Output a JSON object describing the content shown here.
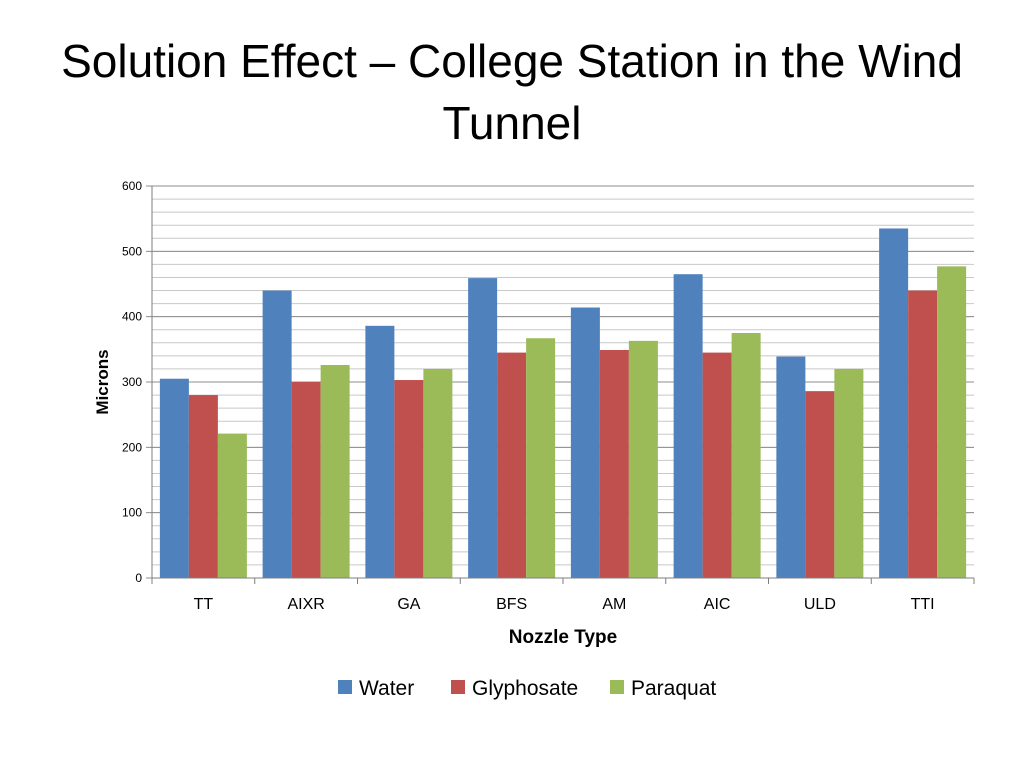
{
  "slide": {
    "title": "Solution Effect – College Station in the Wind Tunnel"
  },
  "chart_data": {
    "type": "bar",
    "title": "",
    "xlabel": "Nozzle Type",
    "ylabel": "Microns",
    "ylim": [
      0,
      600
    ],
    "yticks": [
      0,
      100,
      200,
      300,
      400,
      500,
      600
    ],
    "minor_gridline_step": 20,
    "grid": true,
    "legend_position": "bottom",
    "categories": [
      "TT",
      "AIXR",
      "GA",
      "BFS",
      "AM",
      "AIC",
      "ULD",
      "TTI"
    ],
    "series": [
      {
        "name": "Water",
        "color": "#4F81BD",
        "values": [
          305,
          440,
          386,
          459,
          414,
          465,
          339,
          535
        ]
      },
      {
        "name": "Glyphosate",
        "color": "#C0504D",
        "values": [
          280,
          300,
          303,
          345,
          349,
          345,
          286,
          440
        ]
      },
      {
        "name": "Paraquat",
        "color": "#9BBB59",
        "values": [
          221,
          326,
          320,
          367,
          363,
          375,
          320,
          477
        ]
      }
    ]
  }
}
